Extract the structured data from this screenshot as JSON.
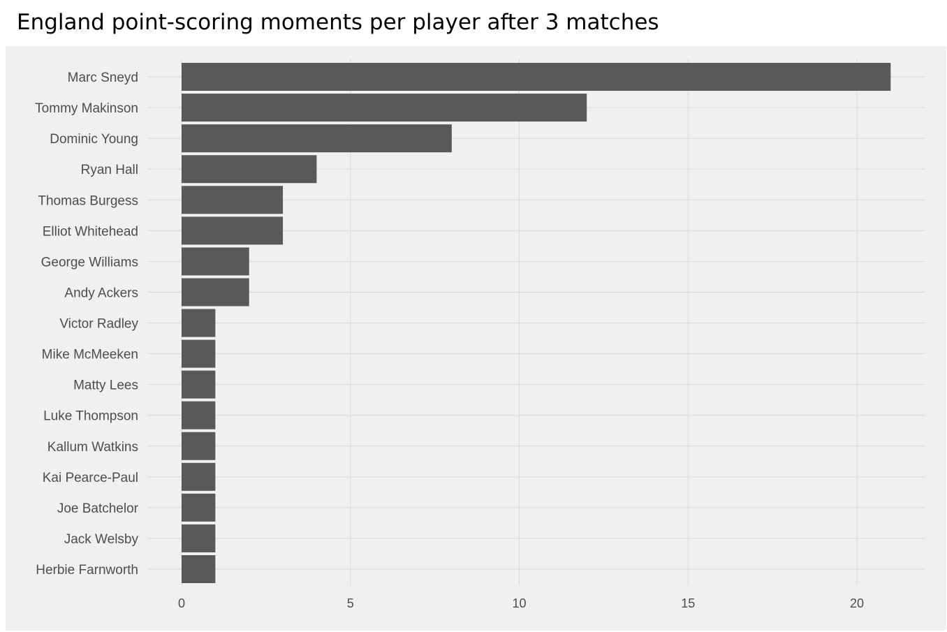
{
  "chart_data": {
    "type": "bar",
    "orientation": "horizontal",
    "title": "England point-scoring moments per player after 3 matches",
    "xlabel": "",
    "ylabel": "",
    "categories": [
      "Marc Sneyd",
      "Tommy Makinson",
      "Dominic Young",
      "Ryan Hall",
      "Thomas Burgess",
      "Elliot Whitehead",
      "George Williams",
      "Andy Ackers",
      "Victor Radley",
      "Mike McMeeken",
      "Matty Lees",
      "Luke Thompson",
      "Kallum Watkins",
      "Kai Pearce-Paul",
      "Joe Batchelor",
      "Jack Welsby",
      "Herbie Farnworth"
    ],
    "values": [
      21,
      12,
      8,
      4,
      3,
      3,
      2,
      2,
      1,
      1,
      1,
      1,
      1,
      1,
      1,
      1,
      1
    ],
    "xlim": [
      -1,
      22
    ],
    "xticks": [
      0,
      5,
      10,
      15,
      20
    ],
    "grid": true,
    "legend": "none",
    "colors": {
      "bar": "#595959",
      "panel_background": "#f0f0f0",
      "grid": "#d9d9d9",
      "tick_text": "#4d4d4d"
    }
  }
}
